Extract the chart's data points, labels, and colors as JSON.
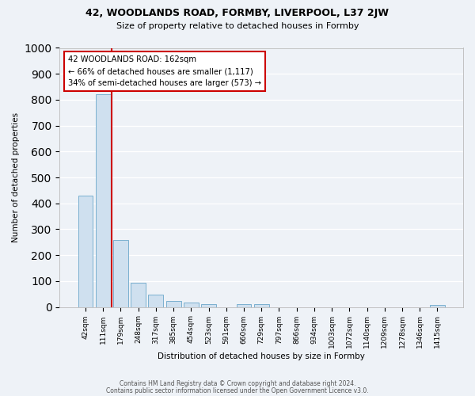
{
  "title1": "42, WOODLANDS ROAD, FORMBY, LIVERPOOL, L37 2JW",
  "title2": "Size of property relative to detached houses in Formby",
  "xlabel": "Distribution of detached houses by size in Formby",
  "ylabel": "Number of detached properties",
  "bar_color": "#cfe0ef",
  "bar_edge_color": "#7ab0cf",
  "background_color": "#eef2f7",
  "grid_color": "#ffffff",
  "categories": [
    "42sqm",
    "111sqm",
    "179sqm",
    "248sqm",
    "317sqm",
    "385sqm",
    "454sqm",
    "523sqm",
    "591sqm",
    "660sqm",
    "729sqm",
    "797sqm",
    "866sqm",
    "934sqm",
    "1003sqm",
    "1072sqm",
    "1140sqm",
    "1209sqm",
    "1278sqm",
    "1346sqm",
    "1415sqm"
  ],
  "values": [
    430,
    820,
    260,
    93,
    48,
    22,
    17,
    10,
    0,
    10,
    10,
    0,
    0,
    0,
    0,
    0,
    0,
    0,
    0,
    0,
    7
  ],
  "ylim": [
    0,
    1000
  ],
  "yticks": [
    0,
    100,
    200,
    300,
    400,
    500,
    600,
    700,
    800,
    900,
    1000
  ],
  "vline_color": "#cc0000",
  "vline_x": 1.5,
  "annotation_line1": "42 WOODLANDS ROAD: 162sqm",
  "annotation_line2": "← 66% of detached houses are smaller (1,117)",
  "annotation_line3": "34% of semi-detached houses are larger (573) →",
  "annotation_box_color": "#ffffff",
  "annotation_box_edge_color": "#cc0000",
  "footer1": "Contains HM Land Registry data © Crown copyright and database right 2024.",
  "footer2": "Contains public sector information licensed under the Open Government Licence v3.0."
}
